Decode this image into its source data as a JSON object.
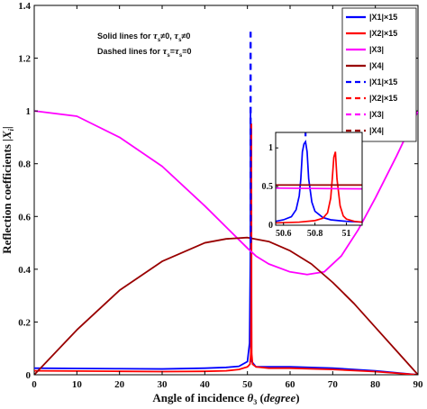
{
  "chart_data": {
    "type": "line",
    "xlabel": "Angle of incidence θ3 (degree)",
    "ylabel": "Reflection coefficients |Xi|",
    "xlim": [
      0,
      90
    ],
    "ylim": [
      0,
      1.4
    ],
    "x_ticks": [
      "0",
      "10",
      "20",
      "30",
      "40",
      "50",
      "60",
      "70",
      "80",
      "90"
    ],
    "y_ticks": [
      "0",
      "0.2",
      "0.4",
      "0.6",
      "0.8",
      "1",
      "1.2",
      "1.4"
    ],
    "grid": false,
    "legend_position": "top-right",
    "annotations": [
      "Solid lines for τ_s≠0, τ_s≠0",
      "Dashed lines for τ_s=τ_s=0"
    ],
    "legend": [
      "|X1|×15",
      "|X2|×15",
      "|X3|",
      "|X4|",
      "|X1|×15",
      "|X2|×15",
      "|X3|",
      "|X4|"
    ],
    "series": [
      {
        "name": "|X1|×15",
        "color": "#0000ff",
        "style": "solid",
        "x": [
          0,
          10,
          20,
          30,
          40,
          45,
          48,
          50,
          50.5,
          50.7,
          50.72,
          50.74,
          50.8,
          51,
          52,
          55,
          60,
          70,
          80,
          90
        ],
        "y": [
          0.025,
          0.024,
          0.023,
          0.022,
          0.025,
          0.028,
          0.032,
          0.05,
          0.12,
          0.45,
          1.0,
          0.45,
          0.1,
          0.05,
          0.03,
          0.03,
          0.03,
          0.025,
          0.015,
          0.0
        ]
      },
      {
        "name": "|X2|×15",
        "color": "#ff0000",
        "style": "solid",
        "x": [
          0,
          10,
          20,
          30,
          40,
          45,
          48,
          50,
          50.6,
          50.8,
          50.9,
          50.93,
          50.96,
          51,
          51.2,
          52,
          55,
          60,
          70,
          80,
          90
        ],
        "y": [
          0.015,
          0.014,
          0.013,
          0.012,
          0.013,
          0.015,
          0.02,
          0.03,
          0.04,
          0.08,
          0.3,
          0.95,
          0.3,
          0.08,
          0.04,
          0.03,
          0.025,
          0.025,
          0.02,
          0.012,
          0.0
        ]
      },
      {
        "name": "|X3|",
        "color": "#ff00ff",
        "style": "solid",
        "x": [
          0,
          10,
          20,
          30,
          40,
          45,
          50,
          52,
          55,
          60,
          64,
          68,
          72,
          76,
          80,
          85,
          90
        ],
        "y": [
          1.0,
          0.98,
          0.9,
          0.79,
          0.64,
          0.56,
          0.48,
          0.45,
          0.42,
          0.39,
          0.38,
          0.39,
          0.45,
          0.55,
          0.67,
          0.83,
          1.0
        ]
      },
      {
        "name": "|X4|",
        "color": "#990000",
        "style": "solid",
        "x": [
          0,
          10,
          20,
          30,
          40,
          45,
          50,
          55,
          60,
          65,
          70,
          75,
          80,
          85,
          90
        ],
        "y": [
          0.0,
          0.17,
          0.32,
          0.43,
          0.5,
          0.515,
          0.52,
          0.505,
          0.47,
          0.42,
          0.35,
          0.27,
          0.18,
          0.09,
          0.0
        ]
      },
      {
        "name": "|X1|×15",
        "color": "#0000ff",
        "style": "dashed",
        "x": [
          50.74,
          50.74
        ],
        "y": [
          0.5,
          1.3
        ]
      },
      {
        "name": "|X2|×15",
        "color": "#ff0000",
        "style": "dashed",
        "x": [],
        "y": []
      },
      {
        "name": "|X3|",
        "color": "#ff00ff",
        "style": "dashed",
        "x": [],
        "y": []
      },
      {
        "name": "|X4|",
        "color": "#990000",
        "style": "dashed",
        "x": [],
        "y": []
      }
    ],
    "inset": {
      "xlim": [
        50.55,
        51.1
      ],
      "ylim": [
        0,
        1.2
      ],
      "x_ticks": [
        "50.6",
        "50.8",
        "51"
      ],
      "y_ticks": [
        "0",
        "0.5",
        "1"
      ],
      "series": [
        {
          "name": "|X1|×15",
          "color": "#0000ff",
          "x": [
            50.55,
            50.6,
            50.65,
            50.68,
            50.7,
            50.71,
            50.72,
            50.73,
            50.74,
            50.75,
            50.76,
            50.78,
            50.8,
            50.85,
            50.9,
            51.0,
            51.1
          ],
          "y": [
            0.05,
            0.07,
            0.11,
            0.2,
            0.38,
            0.6,
            0.95,
            1.05,
            1.08,
            0.95,
            0.6,
            0.3,
            0.18,
            0.1,
            0.07,
            0.05,
            0.04
          ]
        },
        {
          "name": "|X2|×15",
          "color": "#ff0000",
          "x": [
            50.55,
            50.7,
            50.8,
            50.85,
            50.88,
            50.9,
            50.91,
            50.92,
            50.93,
            50.94,
            50.96,
            50.98,
            51.0,
            51.05,
            51.1
          ],
          "y": [
            0.03,
            0.04,
            0.06,
            0.09,
            0.16,
            0.35,
            0.6,
            0.88,
            0.95,
            0.6,
            0.25,
            0.12,
            0.08,
            0.05,
            0.04
          ]
        },
        {
          "name": "|X3|",
          "color": "#ff00ff",
          "x": [
            50.55,
            51.1
          ],
          "y": [
            0.48,
            0.47
          ]
        },
        {
          "name": "|X4|",
          "color": "#990000",
          "x": [
            50.55,
            51.1
          ],
          "y": [
            0.52,
            0.52
          ]
        }
      ],
      "dashed_marker": {
        "color": "#0000ff",
        "x": 50.74,
        "y": [
          1.15,
          1.2
        ]
      }
    }
  }
}
